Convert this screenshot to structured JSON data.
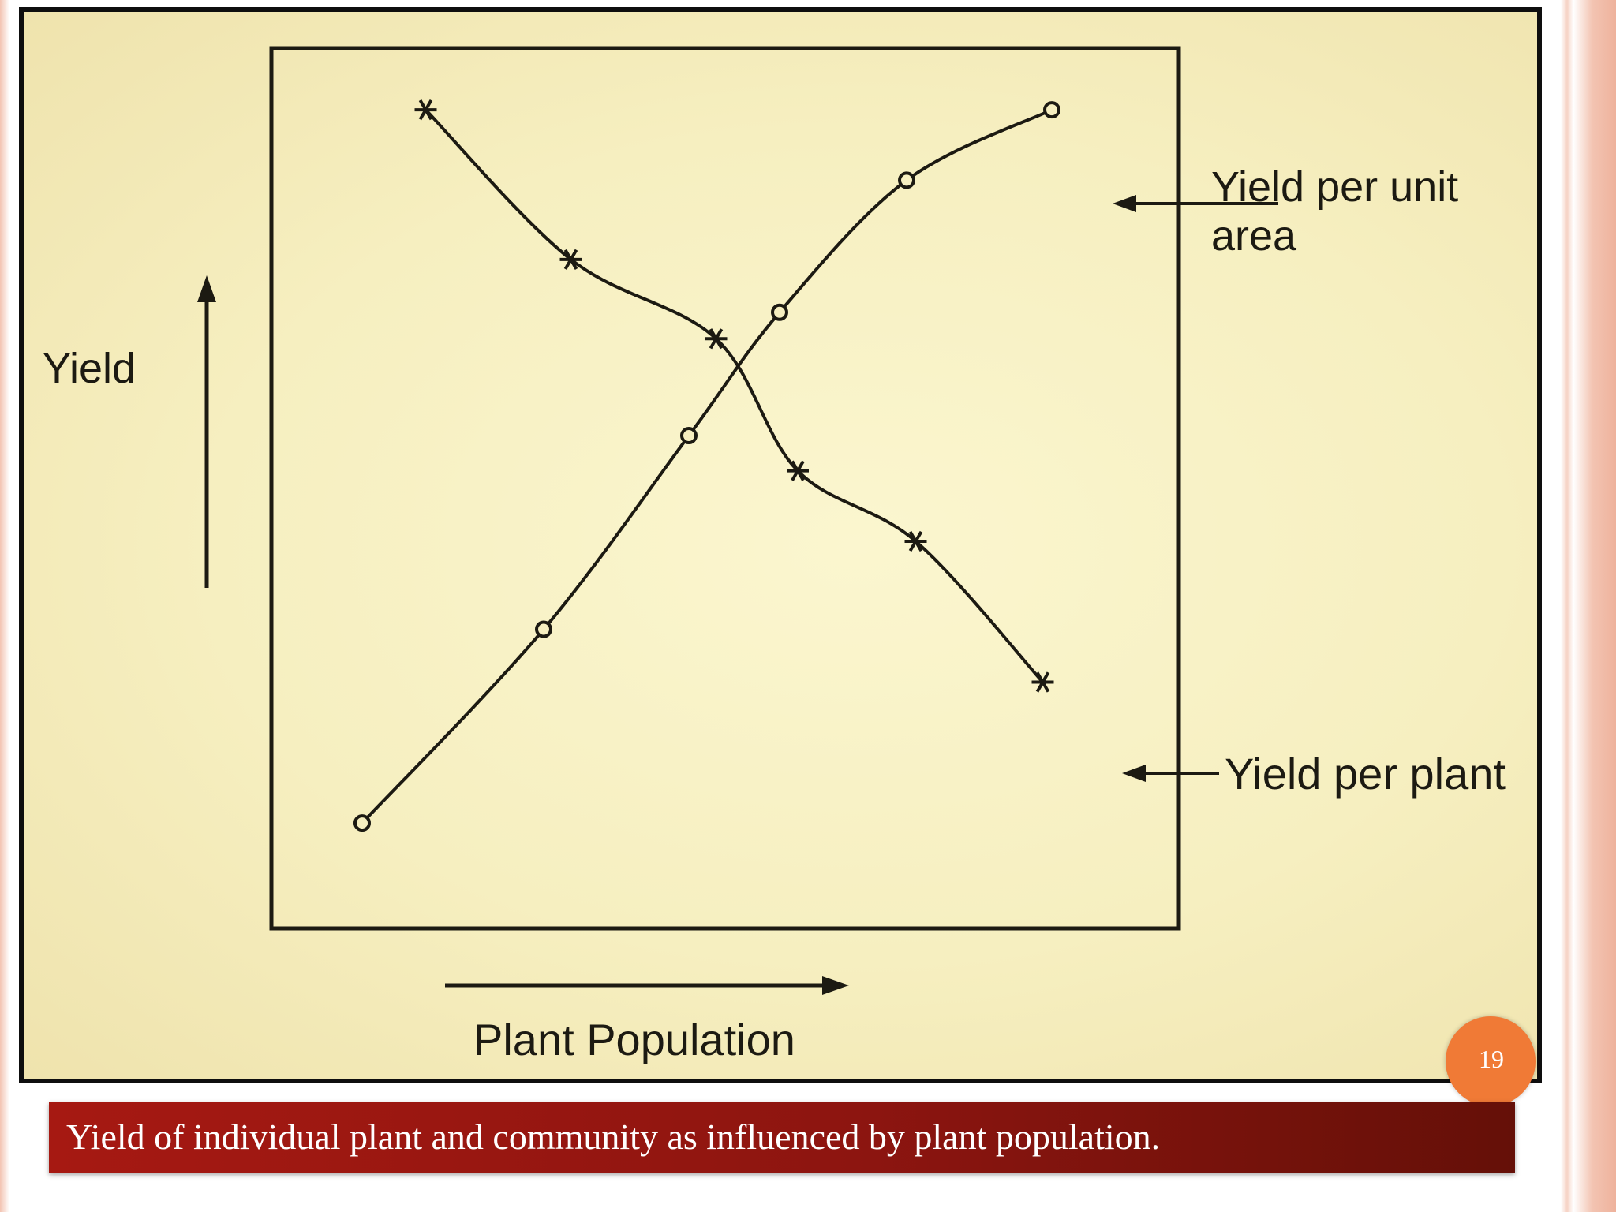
{
  "caption": "Yield of individual plant and community as influenced by plant population.",
  "page_number": "19",
  "colors": {
    "caption_bar": "#8d1510",
    "badge": "#f07a36",
    "paper": "#f6efc0",
    "ink": "#1c1a12"
  },
  "chart_data": {
    "type": "line",
    "title": "",
    "xlabel": "Plant Population",
    "ylabel": "Yield",
    "xlim": [
      0,
      10
    ],
    "ylim": [
      0,
      10
    ],
    "grid": false,
    "legend": "direct labels on right",
    "series": [
      {
        "name": "Yield per unit area",
        "marker": "circle",
        "x": [
          1,
          3,
          4.6,
          5.6,
          7.0,
          8.6
        ],
        "y": [
          1.2,
          3.4,
          5.6,
          7.0,
          8.5,
          9.3
        ]
      },
      {
        "name": "Yield per plant",
        "marker": "star",
        "x": [
          1.7,
          3.3,
          4.9,
          5.8,
          7.1,
          8.5
        ],
        "y": [
          9.3,
          7.6,
          6.7,
          5.2,
          4.4,
          2.8
        ]
      }
    ],
    "legend_entries": [
      "Yield per unit area",
      "Yield per plant"
    ]
  }
}
